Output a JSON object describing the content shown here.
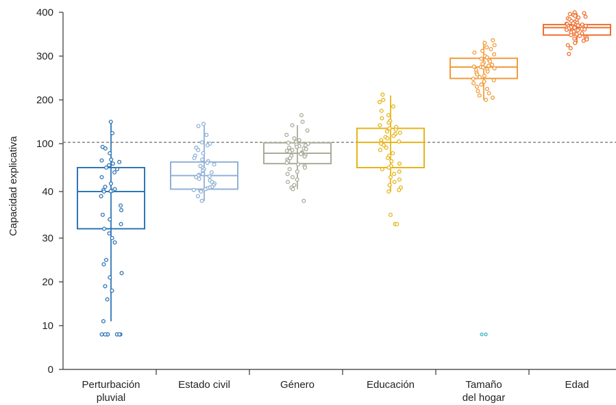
{
  "chart_data": {
    "type": "box",
    "ylabel": "Capacidad explicativa",
    "yticks": [
      "0",
      "10",
      "20",
      "30",
      "40",
      "100",
      "200",
      "300",
      "400"
    ],
    "categories": [
      {
        "lines": [
          "Perturbación",
          "pluvial"
        ],
        "color": "#2e75b6",
        "box": {
          "q1": 32,
          "median": 40,
          "q3": 70,
          "whisker_low": 11,
          "whisker_high": 150
        },
        "points": [
          150,
          124,
          96,
          94,
          88,
          80,
          79,
          77,
          75,
          73,
          70,
          68,
          64,
          58,
          50,
          46,
          43,
          42,
          41,
          40.5,
          40,
          39,
          37,
          36,
          35,
          34,
          33,
          32,
          31,
          30,
          29,
          25,
          24,
          22,
          21,
          19,
          18,
          16,
          11,
          8,
          8,
          8,
          8,
          8,
          8,
          8
        ]
      },
      {
        "lines": [
          "Estado civil"
        ],
        "color": "#8fb0d6",
        "box": {
          "q1": 43,
          "median": 60,
          "q3": 77,
          "whisker_low": 38,
          "whisker_high": 145
        },
        "points": [
          145,
          140,
          120,
          103,
          100,
          98,
          95,
          92,
          88,
          85,
          82,
          80,
          78,
          76,
          74,
          72,
          70,
          68,
          66,
          64,
          63,
          62,
          61,
          60,
          59,
          58,
          56,
          54,
          52,
          50,
          48,
          46,
          45,
          44,
          43,
          42,
          41,
          40,
          39,
          38
        ]
      },
      {
        "lines": [
          "Género"
        ],
        "color": "#a9ab98",
        "box": {
          "q1": 75,
          "median": 88,
          "q3": 102,
          "whisker_low": 43,
          "whisker_high": 142
        },
        "points": [
          165,
          150,
          142,
          130,
          120,
          112,
          108,
          104,
          102,
          100,
          99,
          98,
          97,
          96,
          95,
          94,
          93,
          92,
          91,
          90,
          89,
          88,
          87,
          86,
          85,
          84,
          82,
          80,
          78,
          76,
          74,
          72,
          70,
          68,
          65,
          62,
          58,
          55,
          52,
          48,
          45,
          43,
          38
        ]
      },
      {
        "lines": [
          "Educación"
        ],
        "color": "#e6b417",
        "box": {
          "q1": 70,
          "median": 103,
          "q3": 135,
          "whisker_low": 40,
          "whisker_high": 210
        },
        "points": [
          212,
          200,
          195,
          185,
          175,
          165,
          158,
          152,
          148,
          142,
          138,
          135,
          132,
          128,
          125,
          122,
          118,
          115,
          112,
          108,
          105,
          102,
          100,
          98,
          95,
          92,
          88,
          85,
          82,
          78,
          75,
          72,
          70,
          68,
          65,
          62,
          58,
          55,
          52,
          48,
          45,
          42,
          40,
          35,
          33,
          33
        ]
      },
      {
        "lines": [
          "Tamaño",
          "del hogar"
        ],
        "color": "#f29b3a",
        "outlier_color": "#3fb6c8",
        "box": {
          "q1": 249,
          "median": 275,
          "q3": 295,
          "whisker_low": 200,
          "whisker_high": 335
        },
        "points": [
          336,
          330,
          325,
          320,
          316,
          312,
          308,
          304,
          300,
          297,
          294,
          291,
          288,
          285,
          282,
          280,
          278,
          276,
          275,
          274,
          272,
          270,
          268,
          265,
          262,
          258,
          255,
          252,
          248,
          245,
          242,
          238,
          235,
          230,
          225,
          220,
          215,
          210,
          205,
          200
        ],
        "outliers": [
          8,
          8
        ]
      },
      {
        "lines": [
          "Edad"
        ],
        "color": "#ef6f2d",
        "box": {
          "q1": 348,
          "median": 365,
          "q3": 372,
          "whisker_low": 330,
          "whisker_high": 398
        },
        "points": [
          400,
          398,
          396,
          394,
          392,
          390,
          388,
          386,
          384,
          382,
          380,
          378,
          376,
          375,
          374,
          373,
          372,
          371,
          370,
          369,
          368,
          367,
          366,
          365,
          364,
          363,
          362,
          361,
          360,
          359,
          358,
          356,
          354,
          352,
          350,
          348,
          346,
          344,
          342,
          340,
          338,
          335,
          330,
          325,
          318,
          305
        ]
      }
    ],
    "reference_line": 103,
    "reference_style": "dashed-gray",
    "grid": false,
    "legend": "none"
  }
}
